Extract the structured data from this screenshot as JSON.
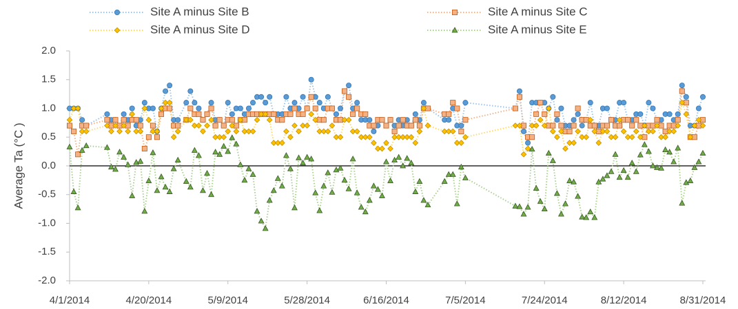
{
  "chart_data": {
    "type": "line",
    "y_label": "Average Ta (°C )",
    "ylim": [
      -2,
      2
    ],
    "yticks": [
      {
        "value": -2,
        "label": "-2.0"
      },
      {
        "value": -1.5,
        "label": "-1.5"
      },
      {
        "value": -1,
        "label": "-1.0"
      },
      {
        "value": -0.5,
        "label": "-0.5"
      },
      {
        "value": 0,
        "label": "0.0"
      },
      {
        "value": 0.5,
        "label": "0.5"
      },
      {
        "value": 1,
        "label": "1.0"
      },
      {
        "value": 1.5,
        "label": "1.5"
      },
      {
        "value": 2,
        "label": "2.0"
      }
    ],
    "xlim": [
      "4/1/2014",
      "8/31/2014"
    ],
    "xticks": [
      "4/1/2014",
      "4/20/2014",
      "5/9/2014",
      "5/28/2014",
      "6/16/2014",
      "7/5/2014",
      "7/24/2014",
      "8/12/2014",
      "8/31/2014"
    ],
    "zero_line": true,
    "x": [
      "4/1/2014",
      "4/2/2014",
      "4/3/2014",
      "4/4/2014",
      "4/5/2014",
      "4/10/2014",
      "4/11/2014",
      "4/12/2014",
      "4/13/2014",
      "4/14/2014",
      "4/15/2014",
      "4/16/2014",
      "4/17/2014",
      "4/18/2014",
      "4/19/2014",
      "4/20/2014",
      "4/21/2014",
      "4/22/2014",
      "4/23/2014",
      "4/24/2014",
      "4/25/2014",
      "4/26/2014",
      "4/27/2014",
      "4/29/2014",
      "4/30/2014",
      "5/1/2014",
      "5/2/2014",
      "5/3/2014",
      "5/4/2014",
      "5/5/2014",
      "5/6/2014",
      "5/7/2014",
      "5/8/2014",
      "5/9/2014",
      "5/10/2014",
      "5/11/2014",
      "5/12/2014",
      "5/13/2014",
      "5/14/2014",
      "5/15/2014",
      "5/16/2014",
      "5/17/2014",
      "5/18/2014",
      "5/19/2014",
      "5/20/2014",
      "5/21/2014",
      "5/22/2014",
      "5/23/2014",
      "5/24/2014",
      "5/25/2014",
      "5/26/2014",
      "5/27/2014",
      "5/28/2014",
      "5/29/2014",
      "5/30/2014",
      "5/31/2014",
      "6/1/2014",
      "6/2/2014",
      "6/3/2014",
      "6/4/2014",
      "6/5/2014",
      "6/6/2014",
      "6/7/2014",
      "6/8/2014",
      "6/9/2014",
      "6/10/2014",
      "6/11/2014",
      "6/12/2014",
      "6/13/2014",
      "6/14/2014",
      "6/15/2014",
      "6/16/2014",
      "6/17/2014",
      "6/18/2014",
      "6/19/2014",
      "6/20/2014",
      "6/21/2014",
      "6/22/2014",
      "6/23/2014",
      "6/24/2014",
      "6/25/2014",
      "6/26/2014",
      "6/30/2014",
      "7/1/2014",
      "7/2/2014",
      "7/3/2014",
      "7/4/2014",
      "7/5/2014",
      "7/17/2014",
      "7/18/2014",
      "7/19/2014",
      "7/20/2014",
      "7/21/2014",
      "7/22/2014",
      "7/23/2014",
      "7/24/2014",
      "7/25/2014",
      "7/26/2014",
      "7/27/2014",
      "7/28/2014",
      "7/29/2014",
      "7/30/2014",
      "7/31/2014",
      "8/1/2014",
      "8/2/2014",
      "8/3/2014",
      "8/4/2014",
      "8/5/2014",
      "8/6/2014",
      "8/7/2014",
      "8/8/2014",
      "8/9/2014",
      "8/10/2014",
      "8/11/2014",
      "8/12/2014",
      "8/13/2014",
      "8/14/2014",
      "8/15/2014",
      "8/16/2014",
      "8/17/2014",
      "8/18/2014",
      "8/19/2014",
      "8/20/2014",
      "8/21/2014",
      "8/22/2014",
      "8/23/2014",
      "8/24/2014",
      "8/25/2014",
      "8/26/2014",
      "8/27/2014",
      "8/28/2014",
      "8/29/2014",
      "8/30/2014",
      "8/31/2014"
    ],
    "series": [
      {
        "name": "Site A minus Site B",
        "color": "#9dc3e6",
        "marker_color": "#5b9bd5",
        "marker_edge": "#2e75b6",
        "marker": "circle",
        "values": [
          1.0,
          1.0,
          1.0,
          0.8,
          0.7,
          0.9,
          0.8,
          0.8,
          0.7,
          0.9,
          0.8,
          1.0,
          0.7,
          0.8,
          1.1,
          1.0,
          1.0,
          0.6,
          1.0,
          1.3,
          1.4,
          0.8,
          0.8,
          1.1,
          1.3,
          1.1,
          1.0,
          0.8,
          0.9,
          1.1,
          0.8,
          0.8,
          0.7,
          1.1,
          0.9,
          1.0,
          1.0,
          0.9,
          1.0,
          1.1,
          1.2,
          1.2,
          1.1,
          1.2,
          0.9,
          0.9,
          0.9,
          1.2,
          1.0,
          1.1,
          1.0,
          1.2,
          1.0,
          1.5,
          1.2,
          1.1,
          1.0,
          1.2,
          1.0,
          0.9,
          1.0,
          1.3,
          1.4,
          1.0,
          1.1,
          0.8,
          0.8,
          0.8,
          0.6,
          0.7,
          0.8,
          0.7,
          0.8,
          0.7,
          0.8,
          0.7,
          0.8,
          0.7,
          0.9,
          0.8,
          1.1,
          1.0,
          0.8,
          0.8,
          1.0,
          0.7,
          0.7,
          1.1,
          1.0,
          1.3,
          0.6,
          0.4,
          1.1,
          1.1,
          1.1,
          1.1,
          1.0,
          1.2,
          0.8,
          1.0,
          0.7,
          0.7,
          0.8,
          0.9,
          0.7,
          0.8,
          1.1,
          0.7,
          0.7,
          1.0,
          1.0,
          0.8,
          0.8,
          1.1,
          1.1,
          0.8,
          0.8,
          0.9,
          0.9,
          0.7,
          1.1,
          1.0,
          0.8,
          0.8,
          0.9,
          0.9,
          0.8,
          0.9,
          1.4,
          1.2,
          0.7,
          0.7,
          1.0,
          1.2
        ]
      },
      {
        "name": "Site A minus Site C",
        "color": "#f4b183",
        "marker_color": "#f4b183",
        "marker_edge": "#c55a11",
        "marker": "square",
        "values": [
          0.7,
          0.6,
          0.2,
          0.7,
          0.7,
          0.8,
          0.7,
          0.8,
          0.7,
          0.8,
          0.7,
          0.8,
          0.8,
          0.7,
          0.3,
          0.5,
          0.7,
          0.5,
          0.9,
          1.0,
          1.0,
          0.7,
          0.7,
          0.8,
          1.0,
          0.9,
          0.9,
          0.8,
          0.9,
          1.0,
          0.7,
          0.8,
          0.7,
          0.8,
          0.8,
          0.7,
          0.8,
          0.8,
          0.9,
          0.9,
          0.9,
          0.9,
          0.9,
          0.9,
          0.9,
          0.8,
          0.8,
          0.9,
          0.9,
          1.0,
          0.9,
          0.9,
          1.0,
          1.2,
          1.0,
          0.8,
          0.8,
          1.0,
          1.0,
          0.8,
          0.8,
          1.3,
          1.2,
          0.9,
          1.0,
          0.9,
          0.9,
          0.7,
          0.7,
          0.8,
          0.8,
          0.7,
          0.8,
          0.6,
          0.7,
          0.8,
          0.7,
          0.7,
          0.8,
          0.7,
          1.0,
          1.0,
          0.9,
          0.9,
          1.1,
          1.0,
          0.6,
          0.8,
          1.0,
          1.2,
          0.7,
          0.5,
          0.5,
          0.9,
          1.1,
          0.9,
          0.7,
          0.7,
          0.9,
          0.7,
          0.6,
          0.6,
          0.7,
          1.0,
          0.8,
          0.8,
          0.7,
          0.7,
          0.6,
          0.7,
          0.7,
          0.8,
          0.7,
          0.7,
          0.8,
          0.8,
          0.7,
          0.8,
          0.7,
          0.5,
          0.7,
          0.7,
          0.8,
          0.7,
          0.6,
          0.7,
          0.7,
          0.8,
          1.3,
          1.1,
          0.5,
          0.5,
          0.7,
          0.8
        ]
      },
      {
        "name": "Site A minus Site D",
        "color": "#ffd966",
        "marker_color": "#ffc000",
        "marker_edge": "#bf9000",
        "marker": "diamond",
        "values": [
          0.8,
          1.0,
          1.0,
          0.6,
          0.6,
          0.7,
          0.6,
          0.7,
          0.6,
          0.7,
          0.6,
          0.9,
          0.6,
          0.6,
          1.0,
          0.8,
          0.6,
          0.6,
          1.0,
          1.1,
          1.1,
          0.5,
          0.6,
          0.8,
          0.8,
          0.7,
          0.7,
          0.6,
          0.7,
          0.8,
          0.5,
          0.5,
          0.5,
          0.6,
          0.7,
          0.6,
          0.8,
          0.6,
          0.6,
          0.6,
          0.8,
          0.9,
          0.9,
          0.8,
          0.4,
          0.4,
          0.4,
          0.6,
          0.5,
          0.7,
          0.6,
          0.7,
          0.7,
          0.9,
          0.8,
          0.6,
          0.6,
          0.6,
          0.7,
          0.5,
          0.5,
          0.8,
          0.8,
          0.6,
          0.6,
          0.5,
          0.5,
          0.5,
          0.4,
          0.3,
          0.3,
          0.4,
          0.3,
          0.5,
          0.5,
          0.5,
          0.5,
          0.5,
          0.4,
          0.6,
          1.0,
          0.7,
          0.6,
          0.6,
          0.6,
          0.4,
          0.4,
          0.5,
          0.7,
          0.7,
          0.2,
          0.3,
          0.7,
          0.7,
          0.8,
          0.7,
          1.0,
          0.6,
          0.5,
          0.6,
          0.3,
          0.4,
          0.4,
          0.6,
          0.5,
          0.5,
          0.8,
          0.6,
          0.4,
          0.6,
          0.6,
          0.5,
          0.5,
          0.8,
          0.6,
          0.5,
          0.5,
          0.6,
          0.5,
          0.7,
          0.6,
          0.6,
          0.7,
          0.5,
          0.5,
          0.6,
          0.6,
          0.7,
          1.1,
          0.9,
          0.5,
          0.7,
          0.8,
          0.7
        ]
      },
      {
        "name": "Site A minus Site E",
        "color": "#a9d18e",
        "marker_color": "#70ad47",
        "marker_edge": "#385723",
        "marker": "triangle",
        "values": [
          0.33,
          -0.45,
          -0.73,
          0.27,
          0.35,
          0.32,
          -0.02,
          -0.06,
          0.24,
          0.15,
          0.02,
          -0.52,
          0.06,
          0.08,
          -0.79,
          -0.26,
          0.23,
          -0.43,
          -0.19,
          -0.37,
          -0.45,
          -0.05,
          0.1,
          -0.27,
          -0.37,
          0.27,
          0.18,
          -0.43,
          -0.13,
          -0.5,
          0.24,
          0.2,
          0.34,
          0.25,
          0.49,
          0.38,
          0.02,
          -0.25,
          -0.05,
          -0.15,
          -0.79,
          -0.96,
          -1.09,
          -0.6,
          -0.43,
          -0.22,
          -0.35,
          0.18,
          -0.05,
          -0.73,
          0.14,
          0.05,
          0.15,
          0.12,
          -0.47,
          -0.78,
          -0.35,
          -0.12,
          -0.46,
          -0.07,
          -0.04,
          -0.25,
          -0.4,
          0.12,
          -0.47,
          -0.72,
          -0.8,
          -0.6,
          -0.35,
          -0.41,
          -0.52,
          0.07,
          -0.26,
          0.1,
          0.15,
          0.0,
          0.13,
          0.05,
          -0.45,
          -0.27,
          -0.6,
          -0.68,
          -0.27,
          -0.15,
          -0.15,
          -0.66,
          -0.02,
          -0.21,
          -0.7,
          -0.71,
          -0.84,
          -0.72,
          0.29,
          -0.39,
          -0.62,
          -0.75,
          0.22,
          0.09,
          -0.48,
          -0.84,
          -0.66,
          -0.26,
          -0.28,
          -0.53,
          -0.89,
          -0.9,
          -0.8,
          -0.9,
          -0.28,
          -0.23,
          -0.17,
          -0.1,
          0.2,
          -0.2,
          -0.08,
          -0.2,
          0.05,
          -0.1,
          0.19,
          0.37,
          0.25,
          0.0,
          -0.03,
          -0.04,
          0.28,
          0.24,
          0.07,
          0.31,
          -0.65,
          -0.29,
          -0.26,
          -0.03,
          0.07,
          0.22
        ]
      }
    ]
  }
}
